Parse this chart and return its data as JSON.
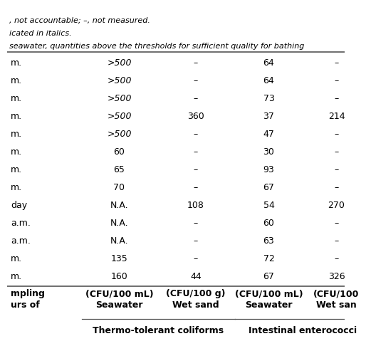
{
  "group_headers": [
    "Thermo-tolerant coliforms",
    "Intestinal enterococci"
  ],
  "col0_header": [
    "urs of",
    "mpling"
  ],
  "sub_headers": [
    "Seawater\n(CFU/100 mL)",
    "Wet sand\n(CFU/100 g)",
    "Seawater\n(CFU/100 mL)",
    "Wet san\n(CFU/100"
  ],
  "rows": [
    [
      "m.",
      "160",
      "44",
      "67",
      "326"
    ],
    [
      "m.",
      "135",
      "–",
      "72",
      "–"
    ],
    [
      "a.m.",
      "N.A.",
      "–",
      "63",
      "–"
    ],
    [
      "a.m.",
      "N.A.",
      "–",
      "60",
      "–"
    ],
    [
      "day",
      "N.A.",
      "108",
      "54",
      "270"
    ],
    [
      "m.",
      "70",
      "–",
      "67",
      "–"
    ],
    [
      "m.",
      "65",
      "–",
      "93",
      "–"
    ],
    [
      "m.",
      "60",
      "–",
      "30",
      "–"
    ],
    [
      "m.",
      ">500",
      "–",
      "47",
      "–"
    ],
    [
      "m.",
      ">500",
      "360",
      "37",
      "214"
    ],
    [
      "m.",
      ">500",
      "–",
      "73",
      "–"
    ],
    [
      "m.",
      ">500",
      "–",
      "64",
      "–"
    ],
    [
      "m.",
      ">500",
      "–",
      "64",
      "–"
    ]
  ],
  "italic_col1_rows": [
    8,
    9,
    10,
    11,
    12
  ],
  "footnotes": [
    "seawater, quantities above the thresholds for sufficient quality for bathing",
    "icated in italics.",
    ", not accountable; –, not measured."
  ],
  "bg_color": "#ffffff",
  "line_color": "#555555",
  "text_color": "#000000",
  "group_header_fontsize": 9,
  "sub_header_fontsize": 9,
  "cell_fontsize": 9,
  "footnote_fontsize": 8
}
